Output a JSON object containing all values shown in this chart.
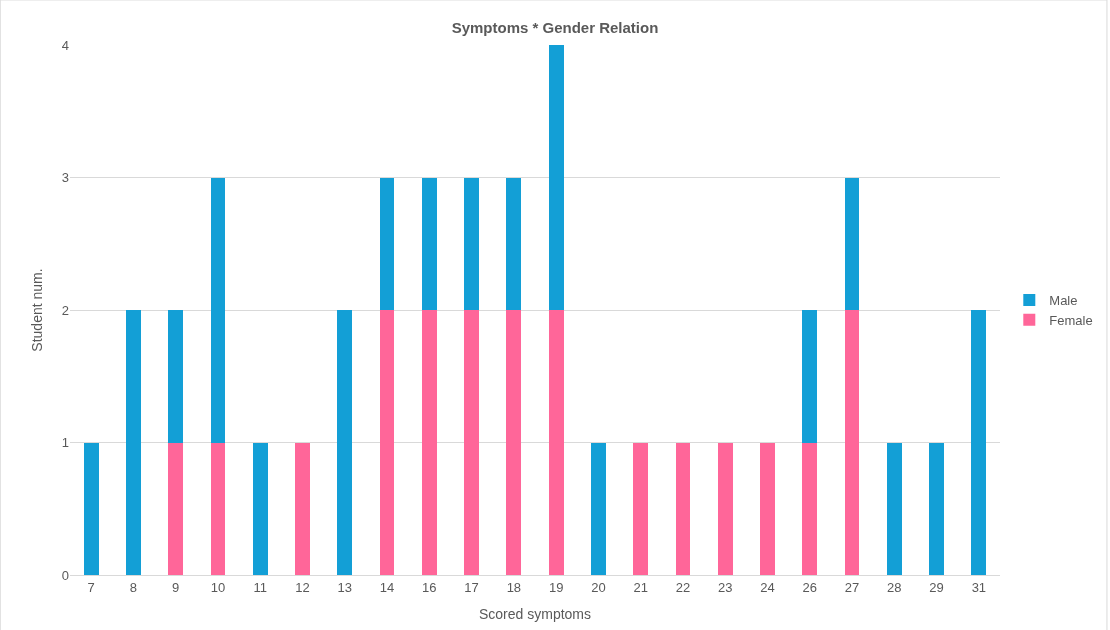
{
  "chart_data": {
    "type": "bar",
    "title": "Symptoms * Gender Relation",
    "xlabel": "Scored symptoms",
    "ylabel": "Student num.",
    "categories": [
      "7",
      "8",
      "9",
      "10",
      "11",
      "12",
      "13",
      "14",
      "16",
      "17",
      "18",
      "19",
      "20",
      "21",
      "22",
      "23",
      "24",
      "26",
      "27",
      "28",
      "29",
      "31"
    ],
    "stacked": true,
    "series": [
      {
        "name": "Female",
        "color": "#ff6699",
        "values": [
          0,
          0,
          1,
          1,
          0,
          1,
          0,
          2,
          2,
          2,
          2,
          2,
          0,
          1,
          1,
          1,
          1,
          1,
          2,
          0,
          0,
          0
        ]
      },
      {
        "name": "Male",
        "color": "#139fd6",
        "values": [
          1,
          2,
          1,
          2,
          1,
          0,
          2,
          1,
          1,
          1,
          1,
          2,
          1,
          0,
          0,
          0,
          0,
          1,
          1,
          1,
          1,
          2
        ]
      }
    ],
    "ylim": [
      0,
      4
    ],
    "yticks": [
      0,
      1,
      2,
      3,
      4
    ],
    "grid": "y",
    "legend": "right"
  }
}
